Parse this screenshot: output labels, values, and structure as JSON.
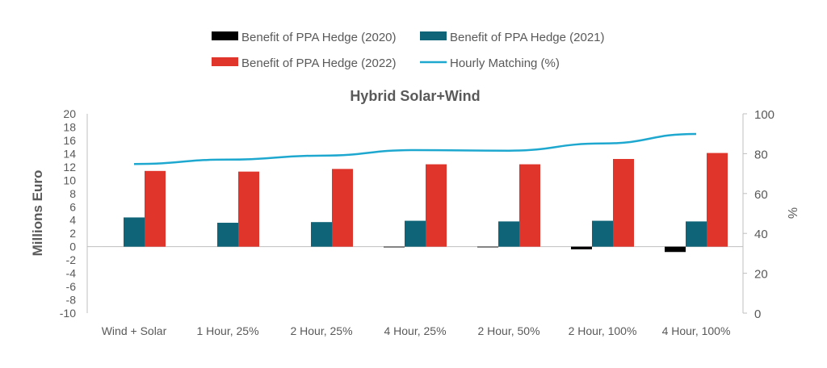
{
  "chart_data": {
    "type": "bar",
    "title": "Hybrid Solar+Wind",
    "categories": [
      "Wind + Solar",
      "1 Hour, 25%",
      "2 Hour, 25%",
      "4 Hour, 25%",
      "2 Hour, 50%",
      "2 Hour, 100%",
      "4 Hour, 100%"
    ],
    "series": [
      {
        "name": "Benefit of PPA Hedge (2020)",
        "kind": "bar",
        "axis": "left",
        "color": "#000000",
        "values": [
          0.0,
          0.0,
          0.0,
          -0.1,
          -0.1,
          -0.4,
          -0.8
        ]
      },
      {
        "name": "Benefit of PPA Hedge (2021)",
        "kind": "bar",
        "axis": "left",
        "color": "#0f6478",
        "values": [
          4.4,
          3.6,
          3.7,
          3.9,
          3.8,
          3.9,
          3.8
        ]
      },
      {
        "name": "Benefit of PPA Hedge (2022)",
        "kind": "bar",
        "axis": "left",
        "color": "#e0352b",
        "values": [
          11.4,
          11.3,
          11.7,
          12.4,
          12.4,
          13.2,
          14.1
        ]
      },
      {
        "name": "Hourly Matching (%)",
        "kind": "line",
        "axis": "right",
        "color": "#1ea8cf",
        "values": [
          74.8,
          77.0,
          79.0,
          81.8,
          81.5,
          85.1,
          89.9
        ]
      }
    ],
    "ylabel": "Millions Euro",
    "ylabel_right": "%",
    "xlabel": "",
    "ylim": [
      -10,
      20
    ],
    "yticks": [
      "20",
      "18",
      "16",
      "14",
      "12",
      "10",
      "8",
      "6",
      "4",
      "2",
      "0",
      "-2",
      "-4",
      "-6",
      "-8",
      "-10"
    ],
    "ylim_right": [
      0,
      100
    ],
    "yticks_right": [
      "100",
      "80",
      "60",
      "40",
      "20",
      "0"
    ],
    "grid": false,
    "legend_position": "top-center"
  }
}
